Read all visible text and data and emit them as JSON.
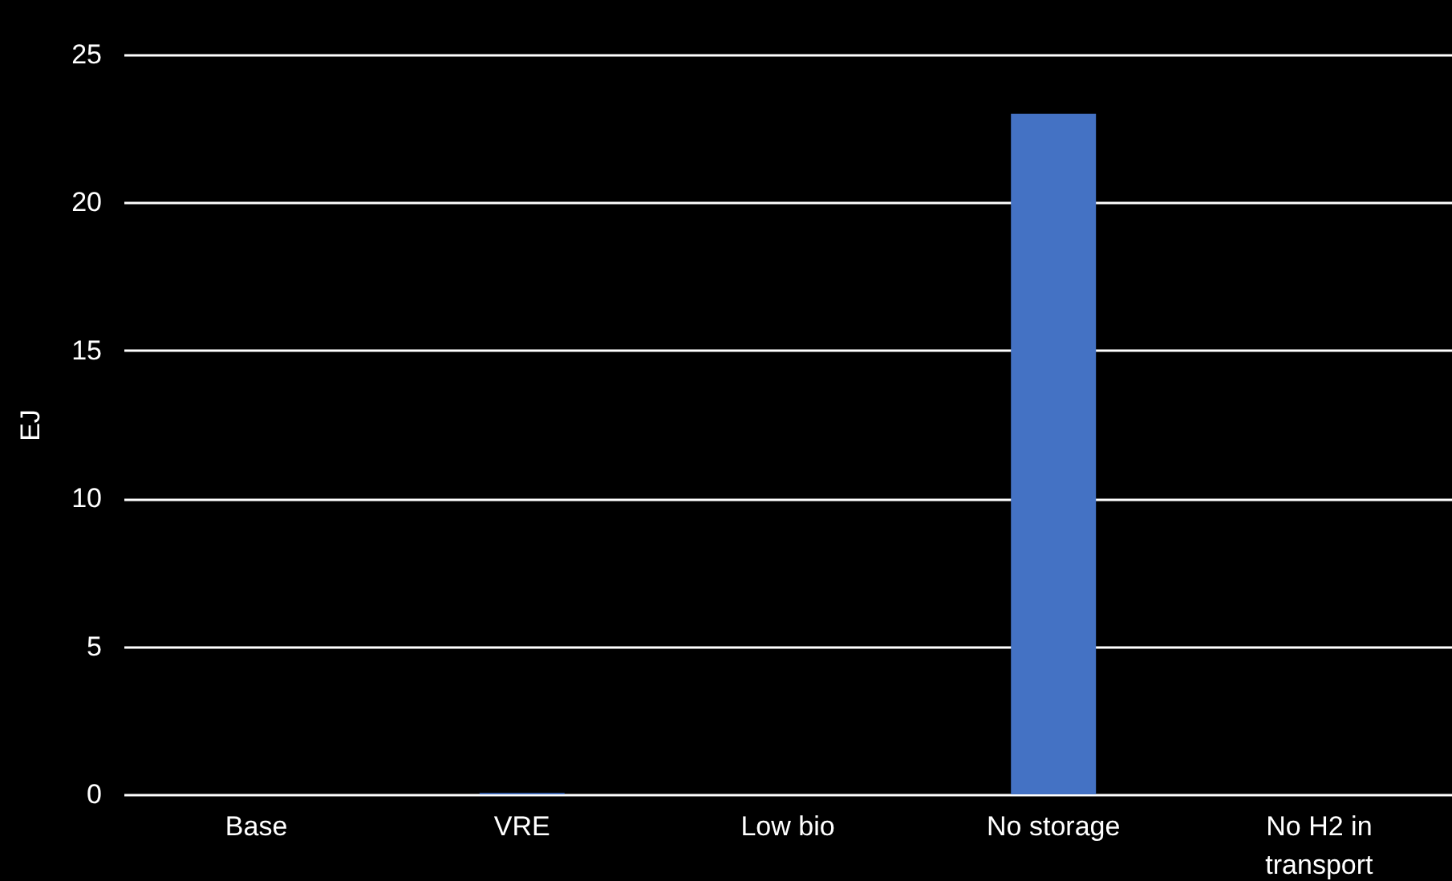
{
  "chart_data": {
    "type": "bar",
    "ylabel": "EJ",
    "categories": [
      "Base",
      "VRE",
      "Low bio",
      "No storage",
      "No H2 in transport"
    ],
    "values": [
      0,
      0.05,
      0,
      23,
      0
    ],
    "color": "#4472c4",
    "ylim": [
      0,
      25
    ],
    "yticks": [
      0,
      5,
      10,
      15,
      20,
      25
    ],
    "grid": "y"
  }
}
